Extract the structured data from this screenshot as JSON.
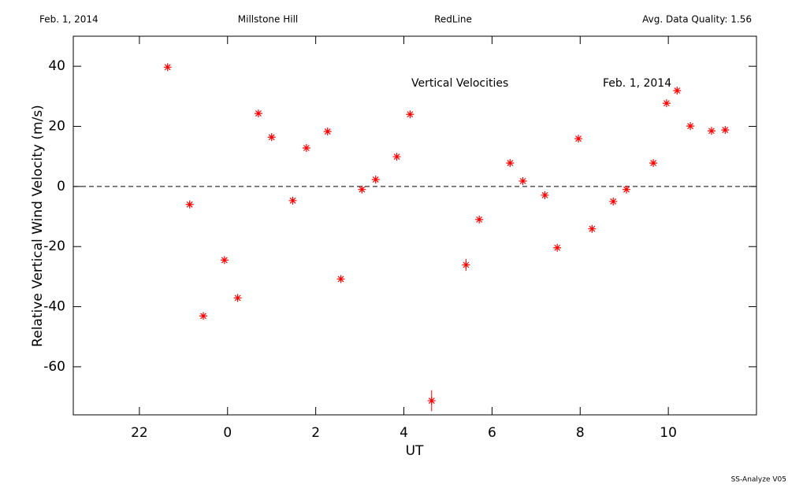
{
  "chart_data": {
    "type": "scatter",
    "header": [
      "Feb. 1, 2014",
      "Millstone Hill",
      "RedLine",
      "Avg. Data Quality: 1.56"
    ],
    "annotations": [
      "Vertical Velocities",
      "Feb. 1, 2014"
    ],
    "footer": "SS-Analyze V05",
    "xlabel": "UT",
    "ylabel": "Relative Vertical Wind Velocity (m/s)",
    "color": "#ff0000",
    "x": [
      -1.36,
      -0.86,
      -0.55,
      -0.07,
      0.23,
      0.7,
      1.0,
      1.48,
      1.79,
      2.27,
      2.57,
      3.05,
      3.36,
      3.84,
      4.14,
      4.63,
      5.41,
      5.71,
      6.41,
      6.7,
      7.2,
      7.48,
      7.96,
      8.27,
      8.75,
      9.05,
      9.66,
      9.96,
      10.2,
      10.5,
      10.98,
      11.29
    ],
    "values": [
      39.7,
      -6.0,
      -43.1,
      -24.5,
      -37.1,
      24.3,
      16.4,
      -4.7,
      12.8,
      18.3,
      -30.8,
      -1.0,
      2.3,
      9.9,
      24.0,
      -71.3,
      -26.1,
      -11.0,
      7.8,
      1.8,
      -2.9,
      -20.4,
      15.9,
      -14.1,
      -5.0,
      -1.0,
      7.8,
      27.7,
      31.9,
      20.1,
      18.5,
      18.8
    ],
    "errors": [
      null,
      null,
      null,
      null,
      null,
      null,
      null,
      null,
      null,
      null,
      null,
      null,
      null,
      null,
      null,
      3.5,
      2.0,
      null,
      null,
      null,
      null,
      null,
      null,
      null,
      null,
      null,
      null,
      null,
      null,
      null,
      null,
      null
    ],
    "reference_line": 0,
    "xlim": [
      -3.5,
      12
    ],
    "ylim": [
      -76,
      50
    ],
    "xticks": [
      {
        "value": -2,
        "label": "22"
      },
      0,
      2,
      4,
      6,
      8,
      10
    ],
    "yticks": [
      -60,
      -40,
      -20,
      0,
      20,
      40
    ]
  }
}
